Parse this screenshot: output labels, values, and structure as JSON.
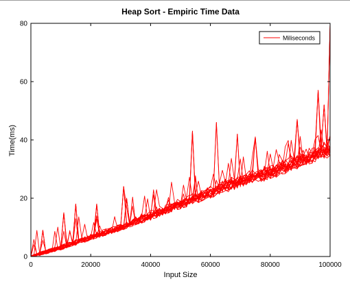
{
  "chart_data": {
    "type": "line",
    "title": "Heap Sort - Empiric Time Data",
    "xlabel": "Input Size",
    "ylabel": "Time(ms)",
    "xlim": [
      0,
      100000
    ],
    "ylim": [
      0,
      80
    ],
    "xticks": [
      0,
      20000,
      40000,
      60000,
      80000,
      100000
    ],
    "yticks": [
      0,
      20,
      40,
      60,
      80
    ],
    "grid": false,
    "legend_position": "top-right",
    "series_color": "#ff0000",
    "legend": {
      "label": "Miliseconds",
      "color": "#ff0000"
    },
    "trend": {
      "x": [
        0,
        5000,
        10000,
        20000,
        30000,
        40000,
        50000,
        60000,
        70000,
        80000,
        90000,
        100000
      ],
      "y": [
        0,
        1.5,
        3,
        6.5,
        10,
        14,
        18,
        22,
        26,
        29,
        33,
        37
      ]
    },
    "spikes": [
      {
        "x": 4000,
        "y": 9
      },
      {
        "x": 11000,
        "y": 15
      },
      {
        "x": 15000,
        "y": 18
      },
      {
        "x": 22000,
        "y": 18
      },
      {
        "x": 31000,
        "y": 24
      },
      {
        "x": 32000,
        "y": 20
      },
      {
        "x": 54000,
        "y": 43
      },
      {
        "x": 62000,
        "y": 46
      },
      {
        "x": 69000,
        "y": 42
      },
      {
        "x": 75000,
        "y": 41
      },
      {
        "x": 89000,
        "y": 47
      },
      {
        "x": 96000,
        "y": 57
      },
      {
        "x": 98000,
        "y": 52
      },
      {
        "x": 100000,
        "y": 80
      }
    ],
    "series_count": 20,
    "samples_per_series": 100
  }
}
